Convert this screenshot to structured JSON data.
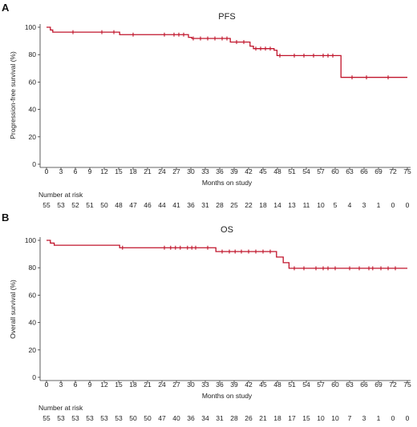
{
  "chart_data": [
    {
      "type": "line",
      "panel": "A",
      "title": "PFS",
      "xlabel": "Months on study",
      "ylabel": "Progression-free survival (%)",
      "xlim": [
        0,
        75
      ],
      "ylim": [
        0,
        100
      ],
      "xticks": [
        0,
        3,
        6,
        9,
        12,
        15,
        18,
        21,
        24,
        27,
        30,
        33,
        36,
        39,
        42,
        45,
        48,
        51,
        54,
        57,
        60,
        63,
        66,
        69,
        72,
        75
      ],
      "yticks": [
        0,
        20,
        40,
        60,
        80,
        100
      ],
      "grid": false,
      "series": [
        {
          "color": "#c0142b",
          "steps": [
            [
              0,
              100
            ],
            [
              0.8,
              98
            ],
            [
              1.3,
              96.4
            ],
            [
              15.2,
              94.6
            ],
            [
              29.5,
              92.6
            ],
            [
              30.2,
              91.8
            ],
            [
              38.2,
              89.2
            ],
            [
              42.3,
              86.2
            ],
            [
              43.0,
              84.4
            ],
            [
              47.3,
              83.2
            ],
            [
              47.9,
              79.3
            ],
            [
              61.2,
              63.4
            ],
            [
              75,
              63.4
            ]
          ],
          "censored": [
            [
              5.5,
              96.4
            ],
            [
              11.5,
              96.4
            ],
            [
              14.0,
              96.4
            ],
            [
              18.0,
              94.6
            ],
            [
              24.5,
              94.6
            ],
            [
              26.5,
              94.6
            ],
            [
              27.5,
              94.6
            ],
            [
              28.5,
              94.6
            ],
            [
              30.5,
              91.8
            ],
            [
              32.0,
              91.8
            ],
            [
              33.5,
              91.8
            ],
            [
              35.0,
              91.8
            ],
            [
              36.5,
              91.8
            ],
            [
              37.5,
              91.8
            ],
            [
              39.5,
              89.2
            ],
            [
              41.0,
              89.2
            ],
            [
              43.5,
              84.4
            ],
            [
              44.5,
              84.4
            ],
            [
              45.5,
              84.4
            ],
            [
              46.5,
              84.4
            ],
            [
              48.5,
              79.3
            ],
            [
              51.5,
              79.3
            ],
            [
              53.5,
              79.3
            ],
            [
              55.5,
              79.3
            ],
            [
              57.5,
              79.3
            ],
            [
              58.5,
              79.3
            ],
            [
              59.5,
              79.3
            ],
            [
              63.5,
              63.4
            ],
            [
              66.5,
              63.4
            ],
            [
              71.0,
              63.4
            ]
          ]
        }
      ],
      "risk_label": "Number at risk",
      "risk_numbers": [
        "55",
        "53",
        "52",
        "51",
        "50",
        "48",
        "47",
        "46",
        "44",
        "41",
        "36",
        "31",
        "28",
        "25",
        "22",
        "18",
        "14",
        "13",
        "11",
        "10",
        "5",
        "4",
        "3",
        "1",
        "0",
        "0"
      ]
    },
    {
      "type": "line",
      "panel": "B",
      "title": "OS",
      "xlabel": "Months on study",
      "ylabel": "Overall survival (%)",
      "xlim": [
        0,
        75
      ],
      "ylim": [
        0,
        100
      ],
      "xticks": [
        0,
        3,
        6,
        9,
        12,
        15,
        18,
        21,
        24,
        27,
        30,
        33,
        36,
        39,
        42,
        45,
        48,
        51,
        54,
        57,
        60,
        63,
        66,
        69,
        72,
        75
      ],
      "yticks": [
        0,
        20,
        40,
        60,
        80,
        100
      ],
      "grid": false,
      "series": [
        {
          "color": "#c0142b",
          "steps": [
            [
              0,
              100
            ],
            [
              0.8,
              98
            ],
            [
              1.6,
              96.4
            ],
            [
              15.2,
              94.6
            ],
            [
              35.2,
              91.8
            ],
            [
              47.8,
              87.8
            ],
            [
              49.2,
              83.7
            ],
            [
              50.4,
              79.6
            ],
            [
              75,
              79.6
            ]
          ],
          "censored": [
            [
              15.8,
              94.6
            ],
            [
              24.5,
              94.6
            ],
            [
              25.8,
              94.6
            ],
            [
              26.8,
              94.6
            ],
            [
              27.8,
              94.6
            ],
            [
              29.3,
              94.6
            ],
            [
              30.2,
              94.6
            ],
            [
              31.0,
              94.6
            ],
            [
              33.5,
              94.6
            ],
            [
              36.5,
              91.8
            ],
            [
              38.0,
              91.8
            ],
            [
              39.2,
              91.8
            ],
            [
              40.5,
              91.8
            ],
            [
              42.0,
              91.8
            ],
            [
              43.5,
              91.8
            ],
            [
              45.0,
              91.8
            ],
            [
              46.5,
              91.8
            ],
            [
              51.5,
              79.6
            ],
            [
              53.5,
              79.6
            ],
            [
              56.0,
              79.6
            ],
            [
              57.5,
              79.6
            ],
            [
              58.5,
              79.6
            ],
            [
              60.0,
              79.6
            ],
            [
              63.0,
              79.6
            ],
            [
              65.0,
              79.6
            ],
            [
              67.0,
              79.6
            ],
            [
              67.8,
              79.6
            ],
            [
              69.5,
              79.6
            ],
            [
              71.0,
              79.6
            ],
            [
              72.5,
              79.6
            ]
          ]
        }
      ],
      "risk_label": "Number at risk",
      "risk_numbers": [
        "55",
        "53",
        "53",
        "53",
        "53",
        "53",
        "50",
        "50",
        "47",
        "40",
        "36",
        "34",
        "31",
        "28",
        "26",
        "21",
        "18",
        "17",
        "15",
        "10",
        "10",
        "7",
        "3",
        "1",
        "0",
        "0"
      ]
    }
  ]
}
